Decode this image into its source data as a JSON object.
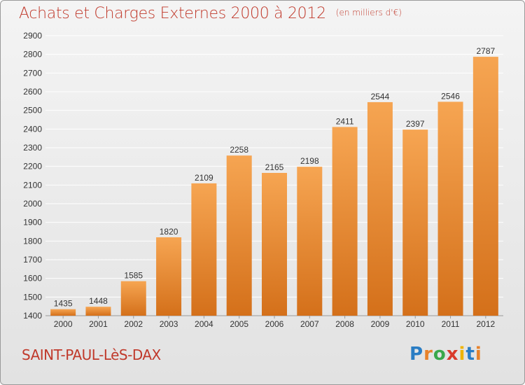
{
  "title": "Achats et Charges Externes 2000 à 2012",
  "subtitle": "(en milliers d'€)",
  "place": "SAINT-PAUL-LèS-DAX",
  "logo": {
    "letters": [
      "P",
      "r",
      "o",
      "x",
      "i",
      "t",
      "i"
    ],
    "colors": [
      "#2a7dc4",
      "#e8822a",
      "#3aa84a",
      "#d93a2b",
      "#f0b400",
      "#2a7dc4",
      "#e8822a"
    ]
  },
  "colors": {
    "bar_top": "#f6a552",
    "bar_bottom": "#d4701a",
    "grid": "#ffffff",
    "axis_text": "#333333",
    "title": "#c0392b"
  },
  "chart_data": {
    "type": "bar",
    "title": "Achats et Charges Externes 2000 à 2012",
    "subtitle": "(en milliers d'€)",
    "categories": [
      "2000",
      "2001",
      "2002",
      "2003",
      "2004",
      "2005",
      "2006",
      "2007",
      "2008",
      "2009",
      "2010",
      "2011",
      "2012"
    ],
    "values": [
      1435,
      1448,
      1585,
      1820,
      2109,
      2258,
      2165,
      2198,
      2411,
      2544,
      2397,
      2546,
      2787
    ],
    "ylim": [
      1400,
      2900
    ],
    "yticks": [
      1400,
      1500,
      1600,
      1700,
      1800,
      1900,
      2000,
      2100,
      2200,
      2300,
      2400,
      2500,
      2600,
      2700,
      2800,
      2900
    ],
    "grid": true,
    "xlabel": "",
    "ylabel": ""
  }
}
